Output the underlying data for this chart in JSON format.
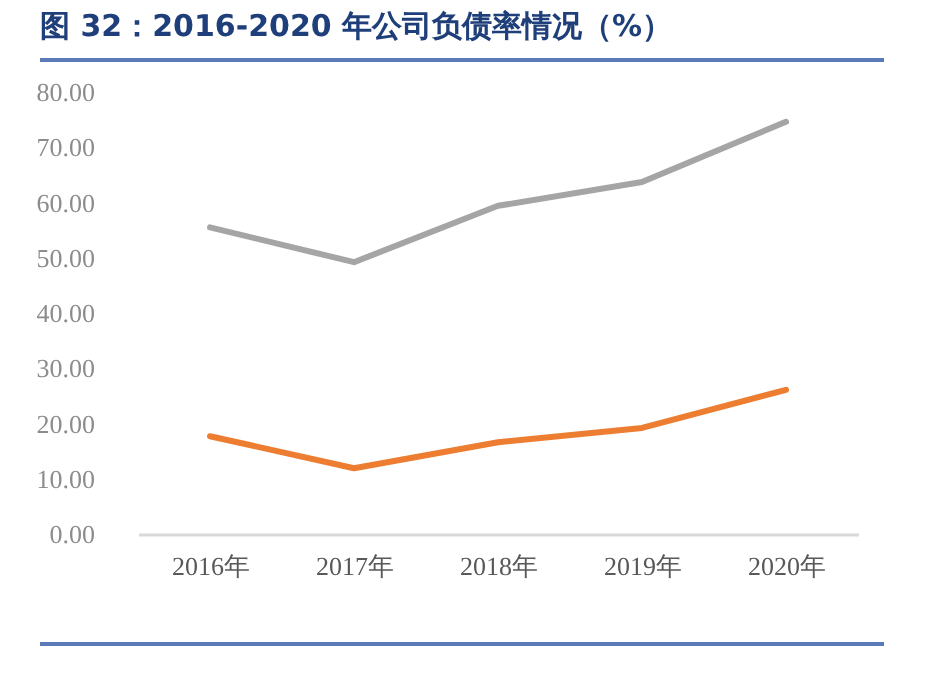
{
  "chart_data": {
    "type": "line",
    "title": "图 32：2016-2020 年公司负债率情况（%）",
    "categories": [
      "2016年",
      "2017年",
      "2018年",
      "2019年",
      "2020年"
    ],
    "series": [
      {
        "color": "#a5a5a5",
        "values": [
          55.5,
          49.2,
          59.4,
          63.7,
          74.6
        ]
      },
      {
        "color": "#ed7d31",
        "values": [
          17.7,
          11.9,
          16.6,
          19.2,
          26.1
        ]
      }
    ],
    "ylim": [
      0,
      80
    ],
    "yticks": [
      {
        "value": 0,
        "label": "0.00"
      },
      {
        "value": 10,
        "label": "10.00"
      },
      {
        "value": 20,
        "label": "20.00"
      },
      {
        "value": 30,
        "label": "30.00"
      },
      {
        "value": 40,
        "label": "40.00"
      },
      {
        "value": 50,
        "label": "50.00"
      },
      {
        "value": 60,
        "label": "60.00"
      },
      {
        "value": 70,
        "label": "70.00"
      },
      {
        "value": 80,
        "label": "80.00"
      }
    ],
    "grid": false,
    "legend": false,
    "marker": "none",
    "line_style": "solid"
  }
}
